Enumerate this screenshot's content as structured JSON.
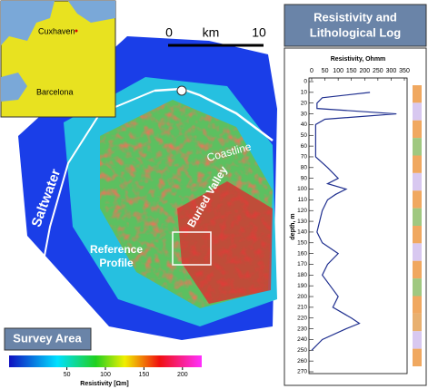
{
  "map": {
    "inset": {
      "labels": [
        "Cuxhaven",
        "Barcelona"
      ]
    },
    "scale": {
      "start": "0",
      "unit": "km",
      "end": "10"
    },
    "labels": {
      "coastline": "Coastline",
      "saltwater": "Saltwater",
      "valley": "Buried Valley",
      "reference": [
        "Reference",
        "Profile"
      ]
    },
    "legend": {
      "title": "Survey Area",
      "colorbar": {
        "label": "Resistivity [Ωm]",
        "ticks": [
          50,
          100,
          150,
          200
        ],
        "lim": [
          -25,
          225
        ]
      }
    }
  },
  "log_panel": {
    "title": [
      "Resistivity and",
      "Lithological Log"
    ]
  },
  "chart_data": {
    "type": "line",
    "title": "Resistivity, Ohmm",
    "y_label": "depth, m",
    "x": [
      10,
      15,
      20,
      25,
      30,
      35,
      40,
      50,
      60,
      70,
      80,
      90,
      95,
      100,
      105,
      110,
      120,
      130,
      140,
      150,
      160,
      170,
      180,
      190,
      200,
      210,
      220,
      225,
      230,
      240,
      245,
      250
    ],
    "values": [
      220,
      40,
      20,
      20,
      320,
      50,
      15,
      15,
      15,
      15,
      60,
      100,
      60,
      130,
      90,
      60,
      40,
      30,
      20,
      40,
      100,
      60,
      40,
      70,
      100,
      80,
      150,
      180,
      130,
      40,
      20,
      0
    ],
    "color": "#1f2f8f",
    "xlim": [
      0,
      350
    ],
    "xticks": [
      0,
      50,
      100,
      150,
      200,
      250,
      300,
      350
    ],
    "ylim": [
      0,
      270
    ],
    "yticks": [
      0,
      10,
      20,
      30,
      40,
      50,
      60,
      70,
      80,
      90,
      100,
      110,
      120,
      130,
      140,
      150,
      160,
      170,
      180,
      190,
      200,
      210,
      220,
      230,
      240,
      250,
      260,
      270
    ]
  }
}
